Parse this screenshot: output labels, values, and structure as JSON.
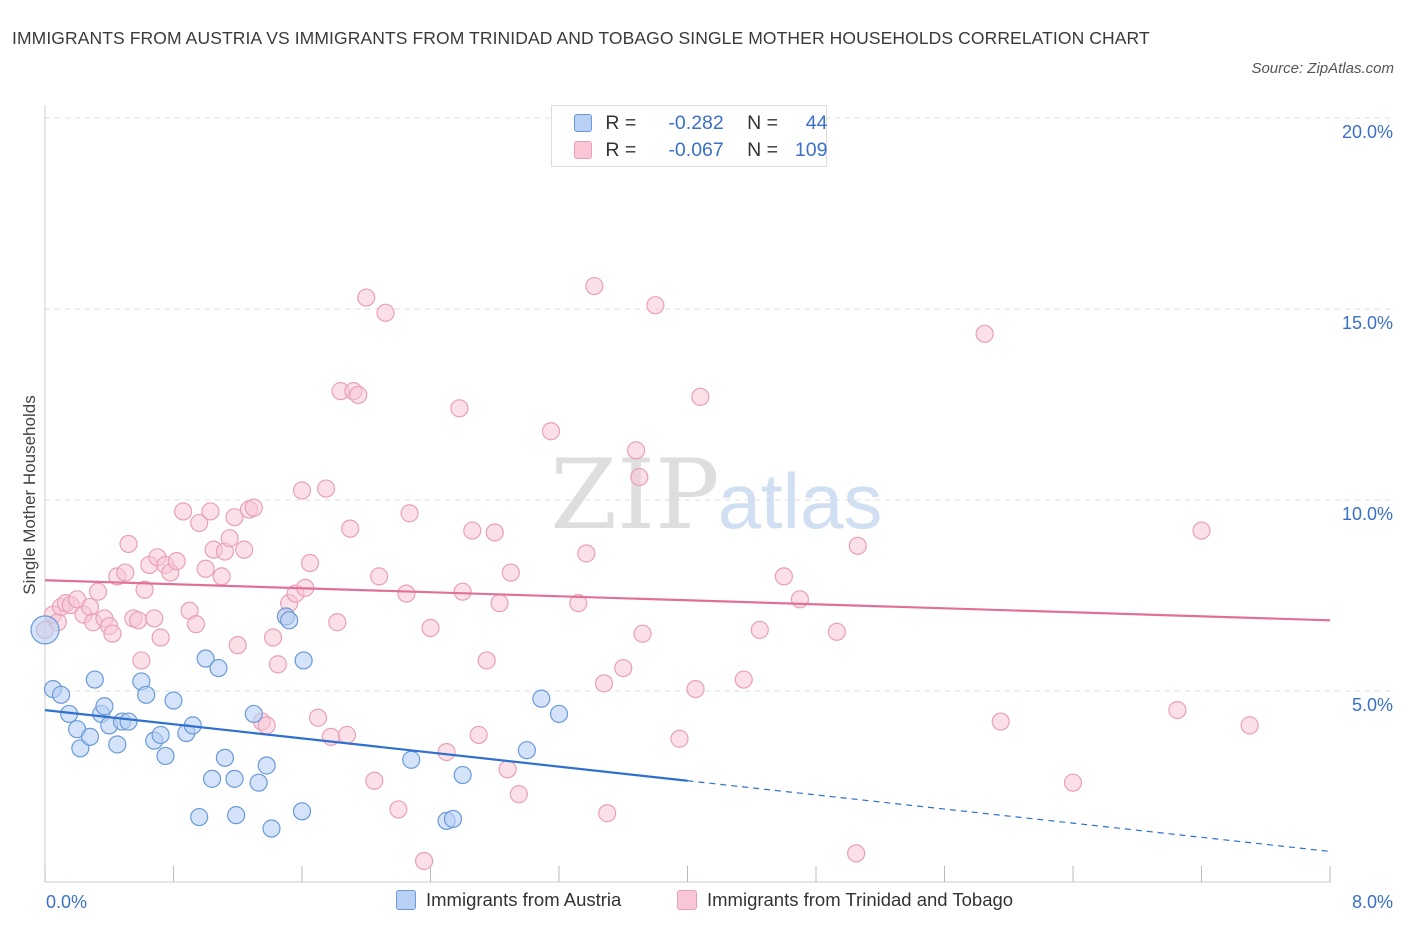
{
  "title": "IMMIGRANTS FROM AUSTRIA VS IMMIGRANTS FROM TRINIDAD AND TOBAGO SINGLE MOTHER HOUSEHOLDS CORRELATION CHART",
  "source": "Source: ZipAtlas.com",
  "watermark": {
    "zip": "ZIP",
    "atlas": "atlas"
  },
  "colors": {
    "austria_fill": "#b8d1f5",
    "austria_stroke": "#6a9ad8",
    "austria_line": "#2f6fce",
    "tt_fill": "#f8c6d5",
    "tt_stroke": "#e8a0b8",
    "tt_line": "#e0709a",
    "grid": "#dedede",
    "tick_text": "#3a70c8"
  },
  "legend_top": [
    {
      "r_label": "R =",
      "r_value": "-0.282",
      "n_label": "N =",
      "n_value": "44"
    },
    {
      "r_label": "R =",
      "r_value": "-0.067",
      "n_label": "N =",
      "n_value": "109"
    }
  ],
  "chart_data": {
    "type": "scatter",
    "title": "IMMIGRANTS FROM AUSTRIA VS IMMIGRANTS FROM TRINIDAD AND TOBAGO SINGLE MOTHER HOUSEHOLDS CORRELATION CHART",
    "xlabel": "",
    "ylabel": "Single Mother Households",
    "xlim": [
      0,
      8
    ],
    "ylim": [
      0,
      20
    ],
    "x_ticks": [
      "0.0%",
      "8.0%"
    ],
    "y_ticks": [
      "5.0%",
      "10.0%",
      "15.0%",
      "20.0%"
    ],
    "y_tick_values": [
      5,
      10,
      15,
      20
    ],
    "grid": true,
    "legend_position": "bottom",
    "series": [
      {
        "name": "Immigrants from Austria",
        "r": -0.282,
        "n": 44,
        "trend": {
          "x0": 0,
          "y0": 4.5,
          "x1": 4.0,
          "y1": 2.65,
          "dash_to_x": 8.0,
          "dash_to_y": 0.8
        },
        "points": [
          [
            0.0,
            6.6
          ],
          [
            0.05,
            5.05
          ],
          [
            0.1,
            4.9
          ],
          [
            0.15,
            4.4
          ],
          [
            0.2,
            4.0
          ],
          [
            0.22,
            3.5
          ],
          [
            0.28,
            3.8
          ],
          [
            0.31,
            5.3
          ],
          [
            0.35,
            4.4
          ],
          [
            0.37,
            4.6
          ],
          [
            0.4,
            4.1
          ],
          [
            0.45,
            3.6
          ],
          [
            0.48,
            4.2
          ],
          [
            0.52,
            4.2
          ],
          [
            0.6,
            5.25
          ],
          [
            0.63,
            4.9
          ],
          [
            0.68,
            3.7
          ],
          [
            0.72,
            3.85
          ],
          [
            0.75,
            3.3
          ],
          [
            0.8,
            4.75
          ],
          [
            0.88,
            3.9
          ],
          [
            0.92,
            4.1
          ],
          [
            0.96,
            1.7
          ],
          [
            1.0,
            5.85
          ],
          [
            1.04,
            2.7
          ],
          [
            1.08,
            5.6
          ],
          [
            1.12,
            3.25
          ],
          [
            1.19,
            1.75
          ],
          [
            1.18,
            2.7
          ],
          [
            1.3,
            4.4
          ],
          [
            1.33,
            2.6
          ],
          [
            1.38,
            3.05
          ],
          [
            1.41,
            1.4
          ],
          [
            1.5,
            6.95
          ],
          [
            1.52,
            6.85
          ],
          [
            1.6,
            1.85
          ],
          [
            1.61,
            5.8
          ],
          [
            2.28,
            3.2
          ],
          [
            2.5,
            1.6
          ],
          [
            2.54,
            1.65
          ],
          [
            2.6,
            2.8
          ],
          [
            3.0,
            3.45
          ],
          [
            3.09,
            4.8
          ],
          [
            3.2,
            4.4
          ]
        ]
      },
      {
        "name": "Immigrants from Trinidad and Tobago",
        "r": -0.067,
        "n": 109,
        "trend": {
          "x0": 0,
          "y0": 7.9,
          "x1": 8.0,
          "y1": 6.85
        },
        "points": [
          [
            0.0,
            6.6
          ],
          [
            0.05,
            7.0
          ],
          [
            0.08,
            6.8
          ],
          [
            0.1,
            7.2
          ],
          [
            0.13,
            7.3
          ],
          [
            0.16,
            7.25
          ],
          [
            0.2,
            7.4
          ],
          [
            0.24,
            7.0
          ],
          [
            0.28,
            7.2
          ],
          [
            0.3,
            6.8
          ],
          [
            0.33,
            7.6
          ],
          [
            0.37,
            6.9
          ],
          [
            0.4,
            6.7
          ],
          [
            0.42,
            6.5
          ],
          [
            0.45,
            8.0
          ],
          [
            0.5,
            8.1
          ],
          [
            0.52,
            8.85
          ],
          [
            0.55,
            6.9
          ],
          [
            0.58,
            6.85
          ],
          [
            0.62,
            7.65
          ],
          [
            0.65,
            8.3
          ],
          [
            0.68,
            6.9
          ],
          [
            0.7,
            8.5
          ],
          [
            0.72,
            6.4
          ],
          [
            0.75,
            8.3
          ],
          [
            0.78,
            8.1
          ],
          [
            0.82,
            8.4
          ],
          [
            0.86,
            9.7
          ],
          [
            0.9,
            7.1
          ],
          [
            0.94,
            6.75
          ],
          [
            0.96,
            9.4
          ],
          [
            1.0,
            8.2
          ],
          [
            1.03,
            9.7
          ],
          [
            1.05,
            8.7
          ],
          [
            1.1,
            8.0
          ],
          [
            1.12,
            8.65
          ],
          [
            1.15,
            9.0
          ],
          [
            1.18,
            9.55
          ],
          [
            1.2,
            6.2
          ],
          [
            1.24,
            8.7
          ],
          [
            1.27,
            9.75
          ],
          [
            1.3,
            9.8
          ],
          [
            1.35,
            4.2
          ],
          [
            1.38,
            4.1
          ],
          [
            1.42,
            6.4
          ],
          [
            1.45,
            5.7
          ],
          [
            1.5,
            6.95
          ],
          [
            1.52,
            7.3
          ],
          [
            1.56,
            7.55
          ],
          [
            1.6,
            10.25
          ],
          [
            1.62,
            7.7
          ],
          [
            1.65,
            8.35
          ],
          [
            1.7,
            4.3
          ],
          [
            1.75,
            10.3
          ],
          [
            1.78,
            3.8
          ],
          [
            1.82,
            6.8
          ],
          [
            1.84,
            12.85
          ],
          [
            1.88,
            3.85
          ],
          [
            1.9,
            9.25
          ],
          [
            1.92,
            12.85
          ],
          [
            1.95,
            12.75
          ],
          [
            2.0,
            15.3
          ],
          [
            2.05,
            2.65
          ],
          [
            2.08,
            8.0
          ],
          [
            2.12,
            14.9
          ],
          [
            2.2,
            1.9
          ],
          [
            2.25,
            7.55
          ],
          [
            2.27,
            9.65
          ],
          [
            2.36,
            0.55
          ],
          [
            2.4,
            6.65
          ],
          [
            2.5,
            3.4
          ],
          [
            2.58,
            12.4
          ],
          [
            2.6,
            7.6
          ],
          [
            2.66,
            9.2
          ],
          [
            2.7,
            3.85
          ],
          [
            2.75,
            5.8
          ],
          [
            2.8,
            9.15
          ],
          [
            2.83,
            7.3
          ],
          [
            2.88,
            2.95
          ],
          [
            2.9,
            8.1
          ],
          [
            2.95,
            2.3
          ],
          [
            3.15,
            11.8
          ],
          [
            3.32,
            7.3
          ],
          [
            3.37,
            8.6
          ],
          [
            3.42,
            15.6
          ],
          [
            3.48,
            5.2
          ],
          [
            3.5,
            1.8
          ],
          [
            3.6,
            5.6
          ],
          [
            3.68,
            11.3
          ],
          [
            3.72,
            6.5
          ],
          [
            3.7,
            10.6
          ],
          [
            3.8,
            15.1
          ],
          [
            3.95,
            3.75
          ],
          [
            4.05,
            5.05
          ],
          [
            4.08,
            12.7
          ],
          [
            4.35,
            5.3
          ],
          [
            4.45,
            6.6
          ],
          [
            4.6,
            8.0
          ],
          [
            4.7,
            7.4
          ],
          [
            4.93,
            6.55
          ],
          [
            5.06,
            8.8
          ],
          [
            5.05,
            0.75
          ],
          [
            5.85,
            14.35
          ],
          [
            5.95,
            4.2
          ],
          [
            6.4,
            2.6
          ],
          [
            7.05,
            4.5
          ],
          [
            7.2,
            9.2
          ],
          [
            7.5,
            4.1
          ],
          [
            0.6,
            5.8
          ]
        ]
      }
    ]
  }
}
